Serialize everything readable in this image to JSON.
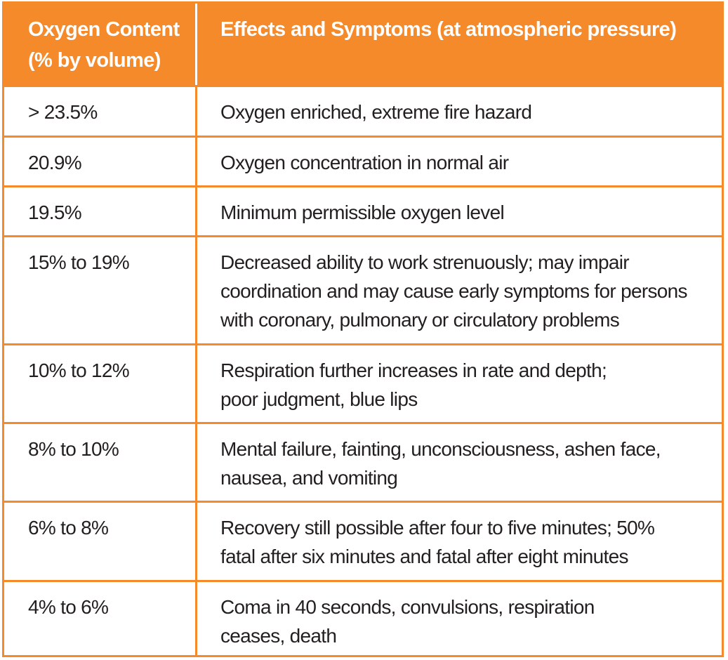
{
  "header": {
    "col1_line1": "Oxygen Content",
    "col1_line2": "(% by volume)",
    "col2": "Effects and Symptoms (at atmospheric pressure)"
  },
  "rows": [
    {
      "content": "> 23.5%",
      "effects": [
        "Oxygen enriched, extreme fire hazard"
      ]
    },
    {
      "content": "20.9%",
      "effects": [
        "Oxygen concentration in normal air"
      ]
    },
    {
      "content": "19.5%",
      "effects": [
        "Minimum permissible oxygen level"
      ]
    },
    {
      "content": "15% to 19%",
      "effects": [
        "Decreased ability to work strenuously; may impair",
        "coordination and may cause early symptoms for persons",
        "with coronary, pulmonary or circulatory problems"
      ]
    },
    {
      "content": "10% to 12%",
      "effects": [
        "Respiration further increases in rate and depth;",
        "poor judgment, blue lips"
      ]
    },
    {
      "content": "8% to 10%",
      "effects": [
        "Mental failure, fainting, unconsciousness, ashen face,",
        "nausea, and vomiting"
      ]
    },
    {
      "content": "6% to 8%",
      "effects": [
        "Recovery still possible after four to five minutes; 50%",
        "fatal after six minutes and fatal after eight minutes"
      ]
    },
    {
      "content": "4% to 6%",
      "effects": [
        "Coma in 40 seconds, convulsions, respiration",
        "ceases, death"
      ]
    }
  ],
  "colors": {
    "accent": "#f58a2a",
    "text": "#231f20",
    "header_text": "#ffffff"
  }
}
